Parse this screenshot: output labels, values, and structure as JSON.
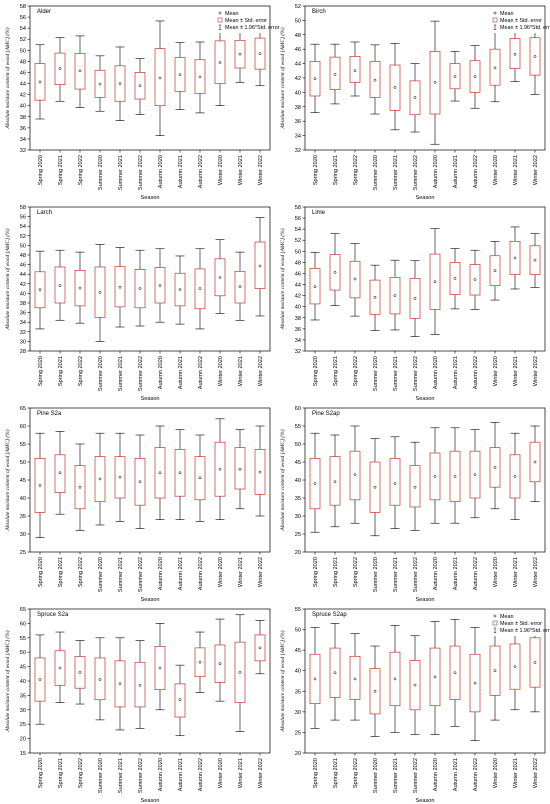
{
  "chart_data": [
    {
      "type": "boxplot",
      "title": "Alder",
      "xlabel": "Season",
      "ylabel": "Absolute moisture content of wood [AMC] (%)",
      "ylim": [
        32,
        58
      ],
      "yticks": [
        32,
        34,
        36,
        38,
        40,
        42,
        44,
        46,
        48,
        50,
        52,
        54,
        56,
        58
      ],
      "categories": [
        "Spring 2020",
        "Spring 2021",
        "Spring 2022",
        "Summer 2020",
        "Summer 2021",
        "Summer 2022",
        "Autumn 2020",
        "Autumn 2021",
        "Autumn 2022",
        "Winter 2020",
        "Winter 2021",
        "Winter 2022"
      ],
      "mean": [
        44.3,
        46.7,
        46.3,
        43.9,
        44.0,
        43.6,
        45.0,
        45.6,
        45.2,
        47.8,
        49.3,
        49.4
      ],
      "se_low": [
        41.0,
        43.8,
        43.0,
        41.5,
        40.8,
        41.2,
        40.0,
        42.6,
        42.2,
        44.0,
        46.8,
        46.6
      ],
      "se_high": [
        47.6,
        49.5,
        49.4,
        46.4,
        47.2,
        46.0,
        50.3,
        48.7,
        48.3,
        51.7,
        51.8,
        52.2
      ],
      "ci_low": [
        37.6,
        40.8,
        39.7,
        39.0,
        37.3,
        38.4,
        34.6,
        39.3,
        38.7,
        40.0,
        44.2,
        43.6
      ],
      "ci_high": [
        51.0,
        52.3,
        52.6,
        49.0,
        50.6,
        48.5,
        55.3,
        51.4,
        51.5,
        54.0,
        54.7,
        54.8
      ]
    },
    {
      "type": "boxplot",
      "title": "Birch",
      "xlabel": "Season",
      "ylabel": "Absolute moisture content of wood [AMC] (%)",
      "ylim": [
        32,
        52
      ],
      "yticks": [
        32,
        34,
        36,
        38,
        40,
        42,
        44,
        46,
        48,
        50,
        52
      ],
      "categories": [
        "Spring 2020",
        "Spring 2021",
        "Spring 2022",
        "Summer 2020",
        "Summer 2021",
        "Summer 2022",
        "Autumn 2020",
        "Autumn 2021",
        "Autumn 2022",
        "Winter 2020",
        "Winter 2021",
        "Winter 2022"
      ],
      "mean": [
        41.9,
        42.5,
        43.0,
        41.7,
        40.7,
        39.3,
        41.4,
        42.2,
        42.2,
        43.4,
        45.3,
        45.0
      ],
      "se_low": [
        39.5,
        40.4,
        41.4,
        39.3,
        37.5,
        36.9,
        37.0,
        40.5,
        40.0,
        41.0,
        43.3,
        42.4
      ],
      "se_high": [
        44.3,
        44.9,
        45.0,
        44.3,
        43.8,
        41.6,
        45.7,
        44.0,
        44.4,
        46.0,
        47.5,
        47.6
      ],
      "ci_low": [
        37.2,
        38.4,
        39.5,
        37.0,
        34.8,
        34.5,
        32.8,
        38.8,
        37.8,
        38.7,
        41.5,
        39.7
      ],
      "ci_high": [
        46.7,
        46.7,
        47.0,
        46.6,
        46.8,
        44.0,
        49.9,
        45.7,
        46.5,
        48.4,
        49.5,
        50.0
      ]
    },
    {
      "type": "boxplot",
      "title": "Larch",
      "xlabel": "Season",
      "ylabel": "Absolute moisture content of wood [AMC] (%)",
      "ylim": [
        28,
        58
      ],
      "yticks": [
        28,
        30,
        32,
        34,
        36,
        38,
        40,
        42,
        44,
        46,
        48,
        50,
        52,
        54,
        56,
        58
      ],
      "categories": [
        "Spring 2020",
        "Spring 2021",
        "Spring 2022",
        "Summer 2020",
        "Summer 2021",
        "Summer 2022",
        "Autumn 2020",
        "Autumn 2021",
        "Autumn 2022",
        "Winter 2020",
        "Winter 2021",
        "Winter 2022"
      ],
      "mean": [
        40.8,
        41.6,
        41.1,
        40.2,
        41.3,
        41.0,
        41.6,
        40.8,
        41.0,
        43.3,
        41.4,
        45.7
      ],
      "se_low": [
        37.0,
        38.0,
        37.4,
        35.0,
        37.2,
        37.0,
        38.0,
        37.4,
        36.8,
        39.5,
        38.0,
        41.0
      ],
      "se_high": [
        44.5,
        45.5,
        44.8,
        45.5,
        45.6,
        45.0,
        45.4,
        44.2,
        45.1,
        47.2,
        44.6,
        50.7
      ],
      "ci_low": [
        32.6,
        34.4,
        33.8,
        30.0,
        33.0,
        33.2,
        34.0,
        33.6,
        32.6,
        35.8,
        34.4,
        35.3
      ],
      "ci_high": [
        48.8,
        49.0,
        48.6,
        50.2,
        49.6,
        49.0,
        49.3,
        47.8,
        49.3,
        51.2,
        48.6,
        55.8
      ]
    },
    {
      "type": "boxplot",
      "title": "Lime",
      "xlabel": "Season",
      "ylabel": "Absolute moisture content of wood [AMC] (%)",
      "ylim": [
        32,
        58
      ],
      "yticks": [
        32,
        34,
        36,
        38,
        40,
        42,
        44,
        46,
        48,
        50,
        52,
        54,
        56,
        58
      ],
      "categories": [
        "Spring 2020",
        "Spring 2021",
        "Spring 2022",
        "Summer 2020",
        "Summer 2021",
        "Summer 2022",
        "Autumn 2020",
        "Autumn 2021",
        "Autumn 2022",
        "Winter 2020",
        "Winter 2021",
        "Winter 2022"
      ],
      "mean": [
        43.6,
        46.2,
        45.0,
        41.7,
        42.0,
        41.5,
        44.5,
        45.1,
        44.9,
        46.5,
        48.8,
        48.4
      ],
      "se_low": [
        40.5,
        43.0,
        41.6,
        38.6,
        38.7,
        37.9,
        39.5,
        42.2,
        42.1,
        43.8,
        45.8,
        45.8
      ],
      "se_high": [
        46.9,
        49.4,
        48.2,
        44.8,
        45.3,
        45.1,
        49.5,
        48.0,
        47.6,
        49.2,
        51.8,
        51.0
      ],
      "ci_low": [
        37.6,
        40.2,
        38.3,
        35.7,
        35.8,
        34.6,
        35.0,
        39.6,
        39.5,
        41.2,
        43.2,
        43.5
      ],
      "ci_high": [
        49.8,
        53.2,
        51.4,
        47.5,
        48.4,
        48.3,
        54.1,
        50.5,
        50.2,
        51.8,
        54.4,
        53.2
      ]
    },
    {
      "type": "boxplot",
      "title": "Pine S2a",
      "xlabel": "Season",
      "ylabel": "Absolute moisture content of wood [AMC] (%)",
      "ylim": [
        25,
        65
      ],
      "yticks": [
        25,
        30,
        35,
        40,
        45,
        50,
        55,
        60,
        65
      ],
      "categories": [
        "Spring 2020",
        "Spring 2021",
        "Spring 2022",
        "Summer 2020",
        "Summer 2021",
        "Summer 2022",
        "Autumn 2020",
        "Autumn 2021",
        "Autumn 2022",
        "Winter 2020",
        "Winter 2021",
        "Winter 2022"
      ],
      "mean": [
        43.5,
        47.0,
        43.0,
        45.3,
        45.8,
        44.5,
        47.0,
        47.0,
        45.6,
        48.0,
        48.0,
        47.2
      ],
      "se_low": [
        36.0,
        41.5,
        37.0,
        39.0,
        40.0,
        38.0,
        40.0,
        40.5,
        39.5,
        40.5,
        42.5,
        41.0
      ],
      "se_high": [
        51.0,
        52.0,
        49.0,
        51.5,
        51.5,
        51.0,
        54.0,
        53.5,
        51.5,
        55.5,
        54.0,
        53.5
      ],
      "ci_low": [
        29.0,
        35.5,
        31.0,
        32.5,
        33.5,
        31.5,
        34.0,
        34.0,
        33.5,
        34.0,
        37.0,
        35.0
      ],
      "ci_high": [
        58.0,
        58.5,
        55.0,
        58.0,
        58.0,
        57.5,
        60.0,
        59.0,
        57.5,
        62.0,
        59.0,
        60.0
      ]
    },
    {
      "type": "boxplot",
      "title": "Pine S2ap",
      "xlabel": "Season",
      "ylabel": "Absolute moisture content of wood [AMC] (%)",
      "ylim": [
        20,
        60
      ],
      "yticks": [
        20,
        25,
        30,
        35,
        40,
        45,
        50,
        55,
        60
      ],
      "categories": [
        "Spring 2020",
        "Spring 2021",
        "Spring 2022",
        "Summer 2020",
        "Summer 2021",
        "Summer 2022",
        "Autumn 2020",
        "Autumn 2021",
        "Autumn 2022",
        "Winter 2020",
        "Winter 2021",
        "Winter 2022"
      ],
      "mean": [
        39.0,
        39.5,
        41.5,
        38.0,
        39.0,
        38.0,
        41.0,
        41.0,
        41.5,
        43.5,
        41.0,
        45.0
      ],
      "se_low": [
        32.0,
        33.0,
        34.5,
        31.0,
        33.0,
        32.5,
        34.5,
        34.0,
        35.0,
        38.0,
        35.0,
        39.5
      ],
      "se_high": [
        46.0,
        46.5,
        48.0,
        45.0,
        46.0,
        44.0,
        47.5,
        48.0,
        48.0,
        49.0,
        47.0,
        50.5
      ],
      "ci_low": [
        25.5,
        27.0,
        28.0,
        24.5,
        26.5,
        26.0,
        28.0,
        28.0,
        29.5,
        32.0,
        29.0,
        34.0
      ],
      "ci_high": [
        53.0,
        52.5,
        55.0,
        51.5,
        52.0,
        50.5,
        54.5,
        54.5,
        54.0,
        56.0,
        53.0,
        55.0
      ]
    },
    {
      "type": "boxplot",
      "title": "Spruce S2a",
      "xlabel": "Season",
      "ylabel": "Absolute moisture content of wood [AMC] (%)",
      "ylim": [
        15,
        65
      ],
      "yticks": [
        15,
        20,
        25,
        30,
        35,
        40,
        45,
        50,
        55,
        60,
        65
      ],
      "categories": [
        "Spring 2020",
        "Spring 2021",
        "Spring 2022",
        "Summer 2020",
        "Summer 2021",
        "Summer 2022",
        "Autumn 2020",
        "Autumn 2021",
        "Autumn 2022",
        "Winter 2020",
        "Winter 2021",
        "Winter 2022"
      ],
      "mean": [
        40.5,
        44.5,
        43.0,
        40.5,
        39.0,
        38.5,
        44.5,
        33.5,
        46.5,
        46.0,
        43.0,
        51.5
      ],
      "se_low": [
        33.0,
        38.5,
        37.5,
        33.5,
        31.0,
        31.0,
        37.0,
        27.5,
        41.5,
        39.5,
        32.5,
        47.0
      ],
      "se_high": [
        48.0,
        50.5,
        48.5,
        48.0,
        47.0,
        46.5,
        52.0,
        39.0,
        51.5,
        52.5,
        53.5,
        56.0
      ],
      "ci_low": [
        25.0,
        32.5,
        32.0,
        26.5,
        23.0,
        23.5,
        30.0,
        21.0,
        36.0,
        33.0,
        22.5,
        42.5
      ],
      "ci_high": [
        56.0,
        57.0,
        54.0,
        55.0,
        55.0,
        54.0,
        60.0,
        45.5,
        57.0,
        61.5,
        63.0,
        61.0
      ]
    },
    {
      "type": "boxplot",
      "title": "Spruce S2ap",
      "xlabel": "Season",
      "ylabel": "Absolute moisture content of wood [AMC] (%)",
      "ylim": [
        20,
        55
      ],
      "yticks": [
        20,
        25,
        30,
        35,
        40,
        45,
        50,
        55
      ],
      "categories": [
        "Spring 2020",
        "Spring 2021",
        "Spring 2022",
        "Summer 2020",
        "Summer 2021",
        "Summer 2022",
        "Autumn 2020",
        "Autumn 2021",
        "Autumn 2022",
        "Winter 2020",
        "Winter 2021",
        "Winter 2022"
      ],
      "mean": [
        38.0,
        39.5,
        38.0,
        35.0,
        38.0,
        36.5,
        38.5,
        39.5,
        37.0,
        40.0,
        41.0,
        42.0
      ],
      "se_low": [
        32.0,
        33.5,
        33.0,
        29.5,
        31.5,
        30.5,
        31.5,
        33.0,
        30.0,
        34.0,
        35.5,
        36.0
      ],
      "se_high": [
        44.0,
        45.5,
        43.5,
        40.5,
        44.5,
        42.5,
        45.5,
        46.0,
        44.0,
        46.0,
        46.5,
        48.0
      ],
      "ci_low": [
        26.0,
        28.0,
        28.0,
        24.0,
        25.0,
        24.5,
        24.5,
        26.5,
        23.0,
        28.0,
        30.5,
        30.0
      ],
      "ci_high": [
        50.5,
        51.5,
        49.0,
        46.0,
        51.0,
        48.5,
        52.0,
        52.5,
        50.5,
        52.0,
        52.0,
        54.0
      ]
    }
  ],
  "legend": {
    "mean_label": "Mean",
    "se_label": "Mean ± Std. error",
    "ci_label": "Mean ± 1.96*Std. error"
  },
  "colors": {
    "box_stroke": "#c0392b",
    "line": "#000000",
    "frame": "#000000"
  }
}
